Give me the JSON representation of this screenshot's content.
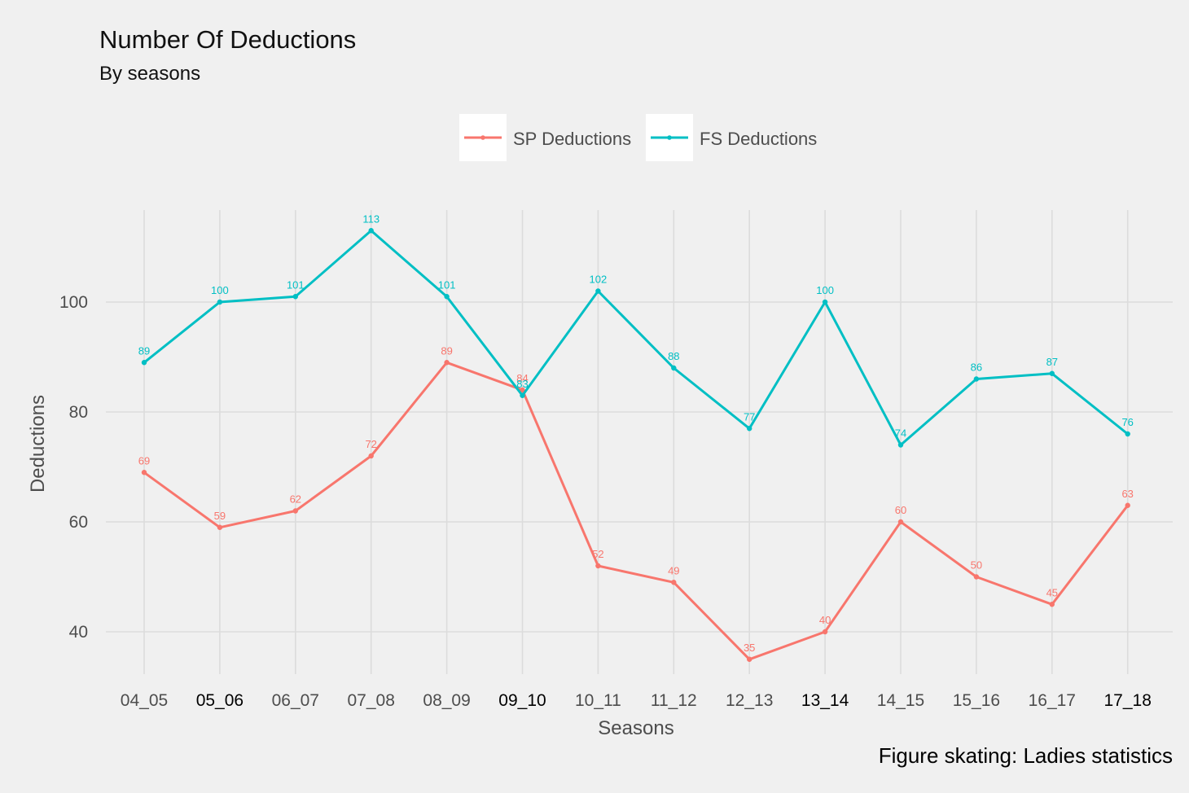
{
  "chart_data": {
    "type": "line",
    "title": "Number Of Deductions",
    "subtitle": "By seasons",
    "xlabel": "Seasons",
    "ylabel": "Deductions",
    "caption": "Figure skating: Ladies statistics",
    "categories": [
      "04_05",
      "05_06",
      "06_07",
      "07_08",
      "08_09",
      "09_10",
      "10_11",
      "11_12",
      "12_13",
      "13_14",
      "14_15",
      "15_16",
      "16_17",
      "17_18"
    ],
    "emphasized_categories": [
      "05_06",
      "09_10",
      "13_14",
      "17_18"
    ],
    "y_ticks": [
      40,
      60,
      80,
      100
    ],
    "ylim": [
      30.7,
      117.3
    ],
    "grid": true,
    "legend_position": "top",
    "series": [
      {
        "name": "SP Deductions",
        "color": "#f8766d",
        "values": [
          69,
          59,
          62,
          72,
          89,
          84,
          52,
          49,
          35,
          40,
          60,
          50,
          45,
          63
        ]
      },
      {
        "name": "FS Deductions",
        "color": "#00bfc4",
        "values": [
          89,
          100,
          101,
          113,
          101,
          83,
          102,
          88,
          77,
          100,
          74,
          86,
          87,
          76
        ]
      }
    ]
  }
}
